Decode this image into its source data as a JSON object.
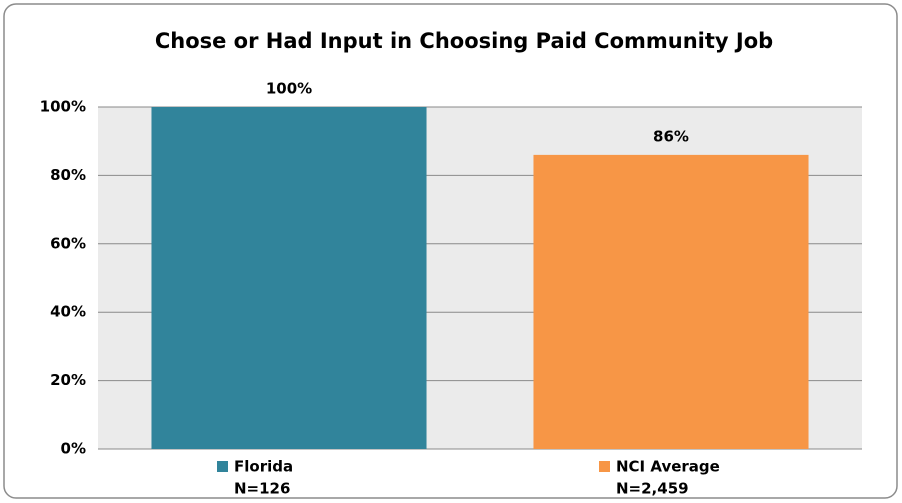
{
  "chart_data": {
    "type": "bar",
    "title": "Chose or Had Input in Choosing Paid Community Job",
    "categories": [
      "Florida",
      "NCI Average"
    ],
    "category_notes": [
      "N=126",
      "N=2,459"
    ],
    "values": [
      100,
      86
    ],
    "value_labels": [
      "100%",
      "86%"
    ],
    "colors": [
      "#31849b",
      "#f79646"
    ],
    "ylim": [
      0,
      100
    ],
    "yticks": [
      {
        "value": 0,
        "label": "0%"
      },
      {
        "value": 20,
        "label": "20%"
      },
      {
        "value": 40,
        "label": "40%"
      },
      {
        "value": 60,
        "label": "60%"
      },
      {
        "value": 80,
        "label": "80%"
      },
      {
        "value": 100,
        "label": "100%"
      }
    ],
    "grid": true
  }
}
